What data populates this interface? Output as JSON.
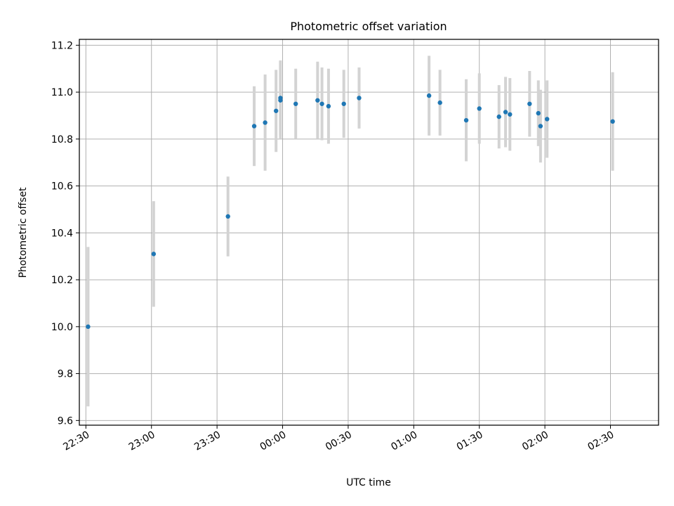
{
  "chart_data": {
    "type": "scatter",
    "title": "Photometric offset variation",
    "xlabel": "UTC time",
    "ylabel": "Photometric offset",
    "grid": true,
    "x_is_time": true,
    "xlim": [
      "22:27",
      "02:52"
    ],
    "ylim": [
      9.58,
      11.225
    ],
    "xticks": [
      "22:30",
      "23:00",
      "23:30",
      "00:00",
      "00:30",
      "01:00",
      "01:30",
      "02:00",
      "02:30"
    ],
    "yticks": [
      "9.6",
      "9.8",
      "10.0",
      "10.2",
      "10.4",
      "10.6",
      "10.8",
      "11.0",
      "11.2"
    ],
    "marker_color": "#1f77b4",
    "errorbar_color": "#d3d3d3",
    "points": [
      {
        "time": "22:31",
        "y": 10.0,
        "err": 0.34
      },
      {
        "time": "23:01",
        "y": 10.31,
        "err": 0.225
      },
      {
        "time": "23:35",
        "y": 10.47,
        "err": 0.17
      },
      {
        "time": "23:47",
        "y": 10.855,
        "err": 0.17
      },
      {
        "time": "23:52",
        "y": 10.87,
        "err": 0.205
      },
      {
        "time": "23:57",
        "y": 10.92,
        "err": 0.175
      },
      {
        "time": "23:59",
        "y": 10.975,
        "err": 0.16
      },
      {
        "time": "23:59",
        "y": 10.965,
        "err": 0.165
      },
      {
        "time": "00:06",
        "y": 10.95,
        "err": 0.15
      },
      {
        "time": "00:16",
        "y": 10.965,
        "err": 0.165
      },
      {
        "time": "00:18",
        "y": 10.95,
        "err": 0.155
      },
      {
        "time": "00:21",
        "y": 10.94,
        "err": 0.16
      },
      {
        "time": "00:28",
        "y": 10.95,
        "err": 0.145
      },
      {
        "time": "00:35",
        "y": 10.975,
        "err": 0.13
      },
      {
        "time": "01:07",
        "y": 10.985,
        "err": 0.17
      },
      {
        "time": "01:12",
        "y": 10.955,
        "err": 0.14
      },
      {
        "time": "01:24",
        "y": 10.88,
        "err": 0.175
      },
      {
        "time": "01:30",
        "y": 10.93,
        "err": 0.15
      },
      {
        "time": "01:39",
        "y": 10.895,
        "err": 0.135
      },
      {
        "time": "01:42",
        "y": 10.915,
        "err": 0.15
      },
      {
        "time": "01:44",
        "y": 10.905,
        "err": 0.155
      },
      {
        "time": "01:53",
        "y": 10.95,
        "err": 0.14
      },
      {
        "time": "01:57",
        "y": 10.91,
        "err": 0.14
      },
      {
        "time": "01:58",
        "y": 10.855,
        "err": 0.155
      },
      {
        "time": "02:01",
        "y": 10.885,
        "err": 0.165
      },
      {
        "time": "02:31",
        "y": 10.875,
        "err": 0.21
      }
    ]
  }
}
